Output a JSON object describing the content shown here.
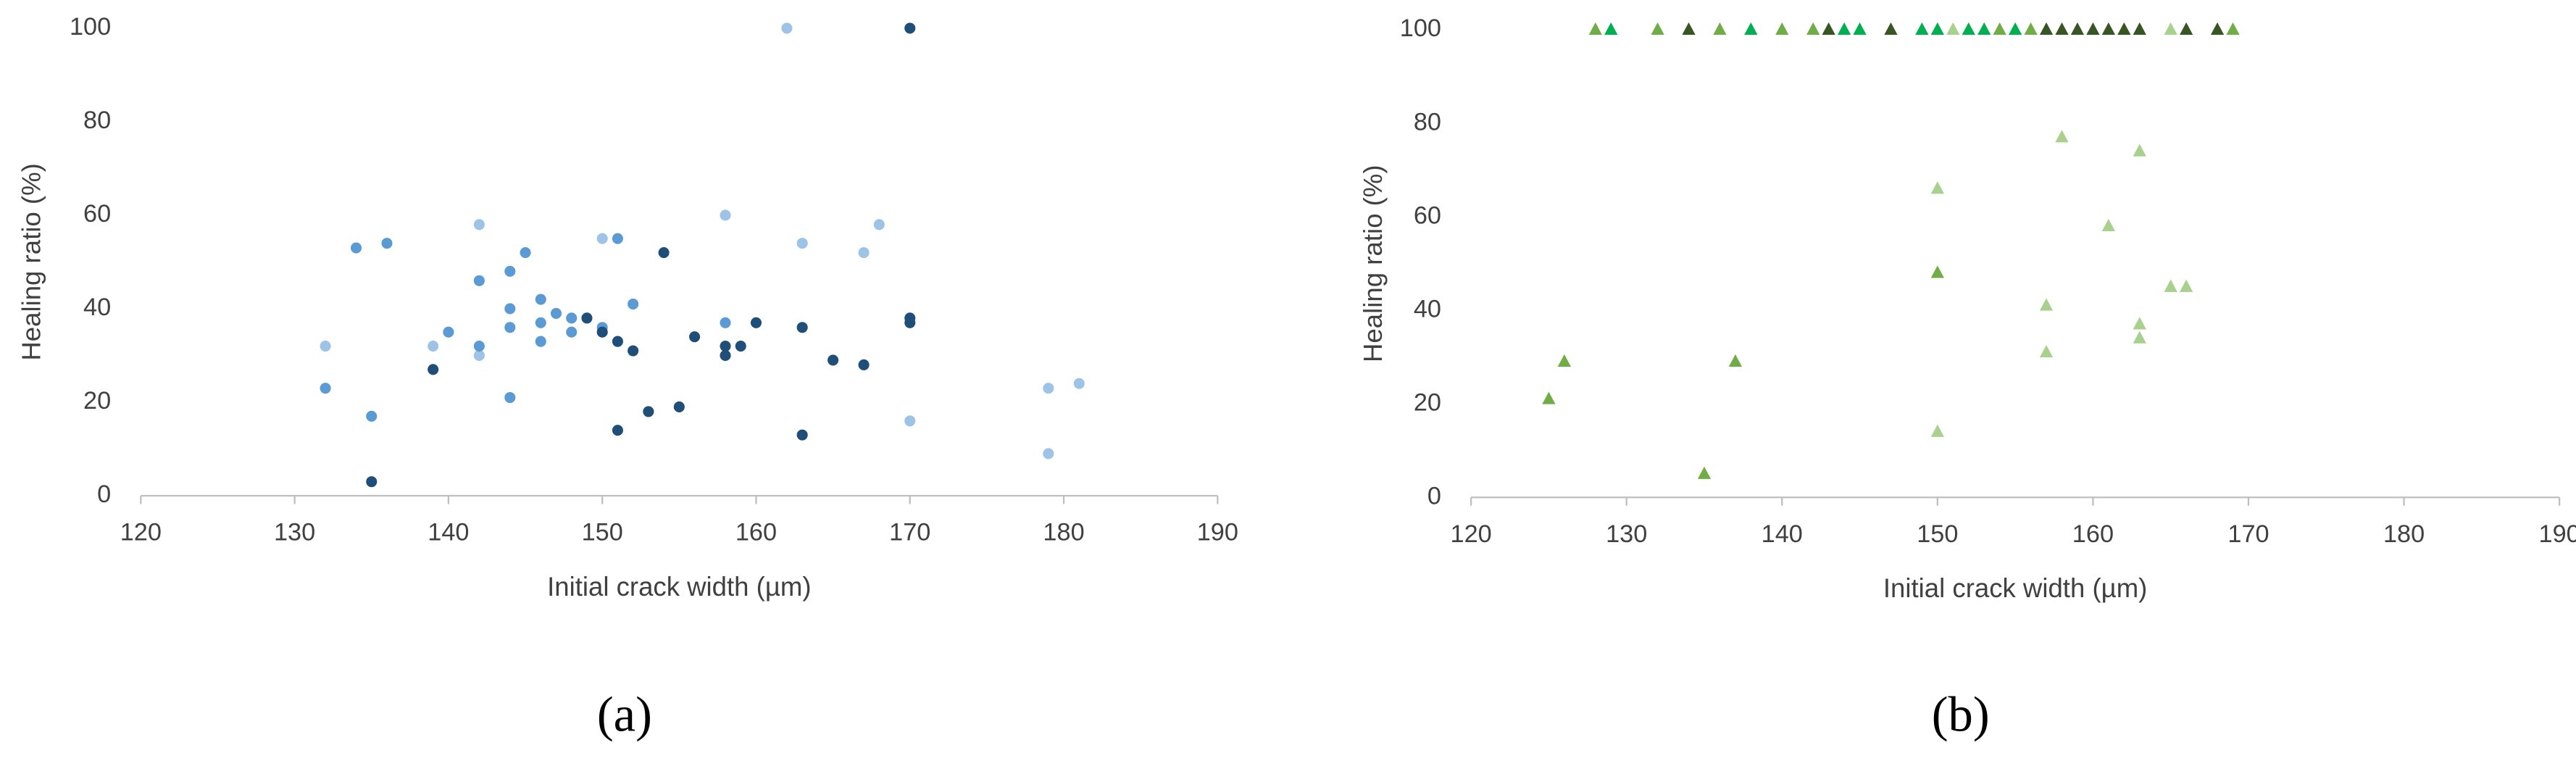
{
  "chart_data": [
    {
      "type": "scatter",
      "label": "(a)",
      "xlabel": "Initial crack width (µm)",
      "ylabel": "Healing ratio (%)",
      "xlim": [
        120,
        190
      ],
      "xticks": [
        120,
        130,
        140,
        150,
        160,
        170,
        180,
        190
      ],
      "ylim": [
        0,
        100
      ],
      "yticks": [
        0,
        20,
        40,
        60,
        80,
        100
      ],
      "marker": "circle",
      "series": [
        {
          "color": "#9dc3e6",
          "x": [
            132,
            142,
            142,
            139,
            150,
            158,
            162,
            163,
            167,
            168,
            170,
            179,
            179,
            181
          ],
          "values": [
            32,
            58,
            30,
            32,
            55,
            60,
            100,
            54,
            52,
            58,
            16,
            23,
            9,
            24
          ]
        },
        {
          "color": "#5b9bd5",
          "x": [
            134,
            136,
            140,
            142,
            144,
            144,
            144,
            145,
            146,
            146,
            147,
            148,
            148,
            150,
            151,
            152,
            144,
            135,
            132,
            146,
            158,
            142
          ],
          "values": [
            53,
            54,
            35,
            46,
            48,
            40,
            36,
            52,
            42,
            37,
            39,
            38,
            35,
            36,
            55,
            41,
            21,
            17,
            23,
            33,
            37,
            32
          ]
        },
        {
          "color": "#1f4e79",
          "x": [
            135,
            139,
            149,
            150,
            151,
            151,
            152,
            153,
            154,
            155,
            156,
            158,
            158,
            159,
            160,
            163,
            163,
            165,
            167,
            170,
            170,
            170
          ],
          "values": [
            3,
            27,
            38,
            35,
            33,
            14,
            31,
            18,
            52,
            19,
            34,
            32,
            30,
            32,
            37,
            36,
            13,
            29,
            28,
            38,
            37,
            100
          ]
        }
      ]
    },
    {
      "type": "scatter",
      "label": "(b)",
      "xlabel": "Initial crack width (µm)",
      "ylabel": "Healing ratio (%)",
      "xlim": [
        120,
        190
      ],
      "xticks": [
        120,
        130,
        140,
        150,
        160,
        170,
        180,
        190
      ],
      "ylim": [
        0,
        100
      ],
      "yticks": [
        0,
        20,
        40,
        60,
        80,
        100
      ],
      "marker": "triangle",
      "series": [
        {
          "color": "#a9d18e",
          "x": [
            151,
            165,
            150,
            150,
            157,
            157,
            158,
            161,
            163,
            163,
            163,
            165,
            166
          ],
          "values": [
            100,
            100,
            66,
            14,
            41,
            31,
            77,
            58,
            74,
            37,
            34,
            45,
            45
          ]
        },
        {
          "color": "#70ad47",
          "x": [
            128,
            132,
            136,
            140,
            142,
            154,
            156,
            169,
            125,
            126,
            135,
            137,
            150
          ],
          "values": [
            100,
            100,
            100,
            100,
            100,
            100,
            100,
            100,
            21,
            29,
            5,
            29,
            48
          ]
        },
        {
          "color": "#00b050",
          "x": [
            129,
            138,
            144,
            145,
            149,
            150,
            152,
            153,
            155
          ],
          "values": [
            100,
            100,
            100,
            100,
            100,
            100,
            100,
            100,
            100
          ]
        },
        {
          "color": "#375623",
          "x": [
            134,
            143,
            147,
            157,
            158,
            159,
            160,
            161,
            162,
            163,
            166,
            168
          ],
          "values": [
            100,
            100,
            100,
            100,
            100,
            100,
            100,
            100,
            100,
            100,
            100,
            100
          ]
        }
      ]
    }
  ]
}
